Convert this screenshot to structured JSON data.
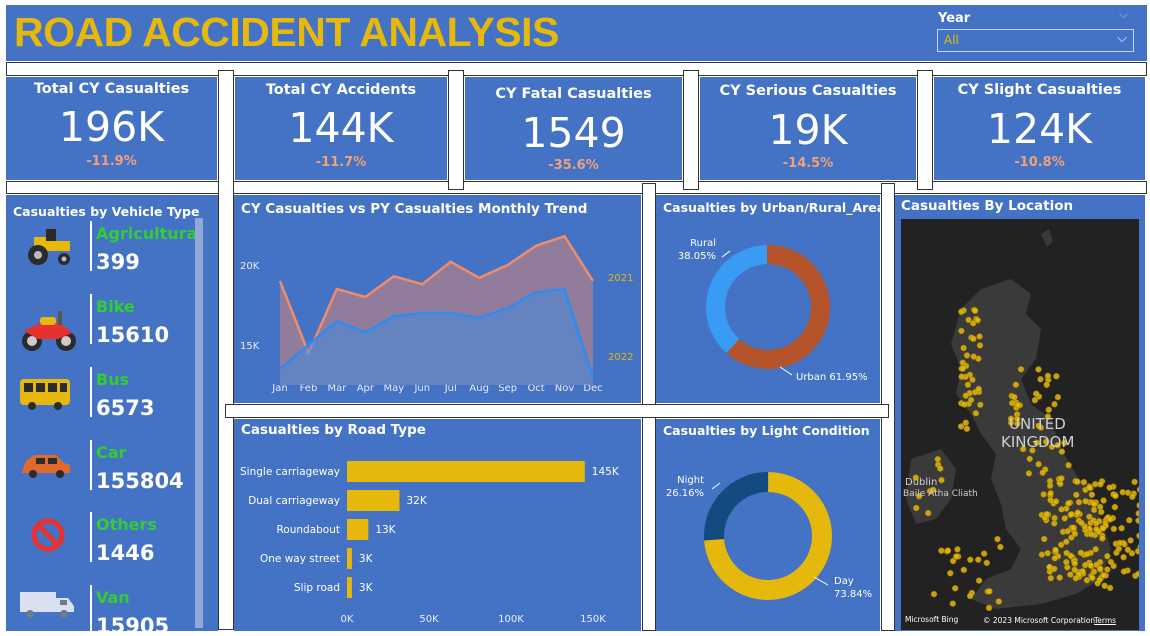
{
  "header": {
    "title": "ROAD ACCIDENT ANALYSIS",
    "year_label": "Year",
    "year_value": "All"
  },
  "kpis": [
    {
      "title": "Total CY Casualties",
      "value": "196K",
      "delta": "-11.9%"
    },
    {
      "title": "Total CY Accidents",
      "value": "144K",
      "delta": "-11.7%"
    },
    {
      "title": "CY Fatal Casualties",
      "value": "1549",
      "delta": "-35.6%"
    },
    {
      "title": "CY Serious Casualties",
      "value": "19K",
      "delta": "-14.5%"
    },
    {
      "title": "CY Slight Casualties",
      "value": "124K",
      "delta": "-10.8%"
    }
  ],
  "vehicles": {
    "title": "Casualties by Vehicle Type",
    "items": [
      {
        "name": "Agricultural",
        "value": "399",
        "icon": "tractor-icon"
      },
      {
        "name": "Bike",
        "value": "15610",
        "icon": "motorbike-icon"
      },
      {
        "name": "Bus",
        "value": "6573",
        "icon": "bus-icon"
      },
      {
        "name": "Car",
        "value": "155804",
        "icon": "car-icon"
      },
      {
        "name": "Others",
        "value": "1446",
        "icon": "no-entry-icon"
      },
      {
        "name": "Van",
        "value": "15905",
        "icon": "van-icon"
      }
    ]
  },
  "map": {
    "title": "Casualties By Location",
    "label_country_1": "UNITED",
    "label_country_2": "KINGDOM",
    "label_city_1": "Dublin",
    "label_city_2": "Baile Átha Cliath",
    "attribution": "© 2023 Microsoft Corporation",
    "terms": "Terms",
    "brand": "Microsoft Bing"
  },
  "chart_data": [
    {
      "type": "area",
      "title": "CY Casualties vs PY Casualties Monthly Trend",
      "categories": [
        "Jan",
        "Feb",
        "Mar",
        "Apr",
        "May",
        "Jun",
        "Jul",
        "Aug",
        "Sep",
        "Oct",
        "Nov",
        "Dec"
      ],
      "yticks": [
        15000,
        20000
      ],
      "ytick_labels": [
        "15K",
        "20K"
      ],
      "ylim": [
        12500,
        22500
      ],
      "series": [
        {
          "name": "2021",
          "color": "#F08C6B",
          "values": [
            19000,
            14500,
            18500,
            18000,
            19300,
            18800,
            20200,
            19200,
            20000,
            21200,
            21800,
            19000
          ]
        },
        {
          "name": "2022",
          "color": "#2E8CF0",
          "values": [
            13500,
            15000,
            16500,
            15800,
            16800,
            17000,
            17000,
            16700,
            17300,
            18300,
            18500,
            13000
          ]
        }
      ]
    },
    {
      "type": "pie",
      "title": "Casualties by Urban/Rural_Area",
      "slices": [
        {
          "name": "Rural",
          "value": 38.05,
          "label": "38.05%",
          "color": "#3A9BF5"
        },
        {
          "name": "Urban",
          "value": 61.95,
          "label": "61.95%",
          "color": "#B5532B"
        }
      ]
    },
    {
      "type": "bar",
      "title": "Casualties by Road Type",
      "categories": [
        "Single carriageway",
        "Dual carriageway",
        "Roundabout",
        "One way street",
        "Slip road"
      ],
      "values": [
        145000,
        32000,
        13000,
        3000,
        3000
      ],
      "value_labels": [
        "145K",
        "32K",
        "13K",
        "3K",
        "3K"
      ],
      "xticks": [
        0,
        50000,
        100000,
        150000
      ],
      "xtick_labels": [
        "0K",
        "50K",
        "100K",
        "150K"
      ],
      "xlim": [
        0,
        150000
      ],
      "color": "#E5B80B"
    },
    {
      "type": "pie",
      "title": "Casualties by Light Condition",
      "slices": [
        {
          "name": "Night",
          "value": 26.16,
          "label": "26.16%",
          "color": "#134A80"
        },
        {
          "name": "Day",
          "value": 73.84,
          "label": "73.84%",
          "color": "#E5B80B"
        }
      ]
    }
  ]
}
